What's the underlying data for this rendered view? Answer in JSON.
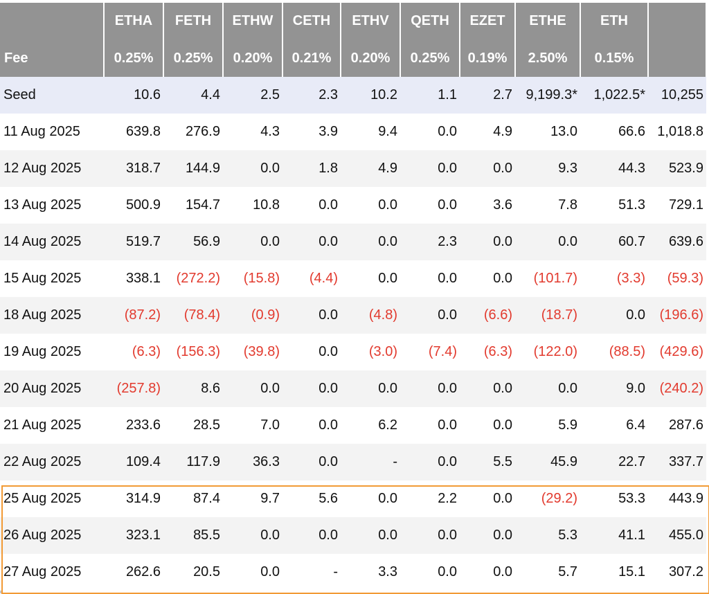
{
  "table": {
    "header": [
      "",
      "ETHA",
      "FETH",
      "ETHW",
      "CETH",
      "ETHV",
      "QETH",
      "EZET",
      "ETHE",
      "ETH",
      ""
    ],
    "fee": [
      "Fee",
      "0.25%",
      "0.25%",
      "0.20%",
      "0.21%",
      "0.20%",
      "0.25%",
      "0.19%",
      "2.50%",
      "0.15%",
      ""
    ],
    "seed": [
      "Seed",
      "10.6",
      "4.4",
      "2.5",
      "2.3",
      "10.2",
      "1.1",
      "2.7",
      "9,199.3*",
      "1,022.5*",
      "10,255"
    ],
    "rows": [
      [
        "11 Aug 2025",
        "639.8",
        "276.9",
        "4.3",
        "3.9",
        "9.4",
        "0.0",
        "4.9",
        "13.0",
        "66.6",
        "1,018.8"
      ],
      [
        "12 Aug 2025",
        "318.7",
        "144.9",
        "0.0",
        "1.8",
        "4.9",
        "0.0",
        "0.0",
        "9.3",
        "44.3",
        "523.9"
      ],
      [
        "13 Aug 2025",
        "500.9",
        "154.7",
        "10.8",
        "0.0",
        "0.0",
        "0.0",
        "3.6",
        "7.8",
        "51.3",
        "729.1"
      ],
      [
        "14 Aug 2025",
        "519.7",
        "56.9",
        "0.0",
        "0.0",
        "0.0",
        "2.3",
        "0.0",
        "0.0",
        "60.7",
        "639.6"
      ],
      [
        "15 Aug 2025",
        "338.1",
        "(272.2)",
        "(15.8)",
        "(4.4)",
        "0.0",
        "0.0",
        "0.0",
        "(101.7)",
        "(3.3)",
        "(59.3)"
      ],
      [
        "18 Aug 2025",
        "(87.2)",
        "(78.4)",
        "(0.9)",
        "0.0",
        "(4.8)",
        "0.0",
        "(6.6)",
        "(18.7)",
        "0.0",
        "(196.6)"
      ],
      [
        "19 Aug 2025",
        "(6.3)",
        "(156.3)",
        "(39.8)",
        "0.0",
        "(3.0)",
        "(7.4)",
        "(6.3)",
        "(122.0)",
        "(88.5)",
        "(429.6)"
      ],
      [
        "20 Aug 2025",
        "(257.8)",
        "8.6",
        "0.0",
        "0.0",
        "0.0",
        "0.0",
        "0.0",
        "0.0",
        "9.0",
        "(240.2)"
      ],
      [
        "21 Aug 2025",
        "233.6",
        "28.5",
        "7.0",
        "0.0",
        "6.2",
        "0.0",
        "0.0",
        "5.9",
        "6.4",
        "287.6"
      ],
      [
        "22 Aug 2025",
        "109.4",
        "117.9",
        "36.3",
        "0.0",
        "-",
        "0.0",
        "5.5",
        "45.9",
        "22.7",
        "337.7"
      ],
      [
        "25 Aug 2025",
        "314.9",
        "87.4",
        "9.7",
        "5.6",
        "0.0",
        "2.2",
        "0.0",
        "(29.2)",
        "53.3",
        "443.9"
      ],
      [
        "26 Aug 2025",
        "323.1",
        "85.5",
        "0.0",
        "0.0",
        "0.0",
        "0.0",
        "0.0",
        "5.3",
        "41.1",
        "455.0"
      ],
      [
        "27 Aug 2025",
        "262.6",
        "20.5",
        "0.0",
        "-",
        "3.3",
        "0.0",
        "0.0",
        "5.7",
        "15.1",
        "307.2"
      ]
    ]
  },
  "colors": {
    "header_bg": "#939393",
    "seed_bg": "#e8ebf7",
    "negative": "#e23a2e",
    "highlight_border": "#f29a35"
  }
}
